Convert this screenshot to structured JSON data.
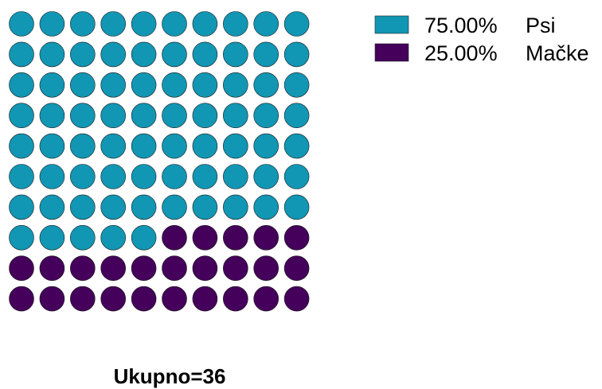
{
  "chart_data": {
    "type": "waffle",
    "total_label": "Ukupno=36",
    "grid": {
      "rows": 10,
      "cols": 10
    },
    "series": [
      {
        "name": "Psi",
        "label": "75.00%",
        "value": 75,
        "color": "#1196b4"
      },
      {
        "name": "Mačke",
        "label": "25.00%",
        "value": 25,
        "color": "#44005a"
      }
    ],
    "legend_position": "top-right"
  }
}
